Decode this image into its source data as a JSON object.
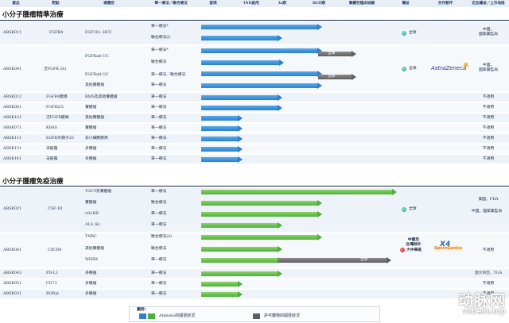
{
  "header": {
    "columns": [
      "產品",
      "靶點",
      "適應症",
      "單一療法／聯合療法",
      "發現",
      "IND啟用",
      "Ia期",
      "Ib/II期",
      "關鍵性臨床試驗",
      "權益",
      "合作夥伴",
      "定品權益／上市地區"
    ]
  },
  "sections": {
    "precision": "小分子腫瘤精準治療",
    "immuno": "小分子腫瘤免疫治療"
  },
  "precision_rows": [
    {
      "product": "ABSK011",
      "target": "FGFR4",
      "indications": [
        "FGF19+ HCC",
        ""
      ],
      "therapies": [
        "單一療法*",
        "聯合療法(i)"
      ],
      "rights": "全球",
      "region": "中國，\n國家藥監局"
    },
    {
      "product": "ABSK091",
      "target": "泛FGFR (iv)",
      "indications": [
        "FGFRalt UC",
        "",
        "FGFRalt GC",
        "其他實體瘤"
      ],
      "therapies": [
        "單一療法*",
        "聯合療法",
        "單一療法／聯合療法",
        "單一療法"
      ],
      "bar_labels": [
        "全球",
        "全球"
      ],
      "rights": "全球",
      "partner": "AstraZeneca",
      "region": "中國，\n國家藥監局"
    },
    {
      "product": "ABSK012",
      "target": "FGFR4變異",
      "indication": "RMS及其他實體瘤",
      "therapy": "單一療法",
      "region": "不適用"
    },
    {
      "product": "ABSK061",
      "target": "FGFR2/3",
      "indication": "實體瘤",
      "therapy": "單一療法",
      "region": "不適用"
    },
    {
      "product": "ABSK121",
      "target": "泛FGFR變異",
      "indication": "其他實體瘤",
      "therapy": "單一療法",
      "region": "不適用"
    },
    {
      "product": "ABSK071",
      "target": "KRAS",
      "indication": "實體瘤",
      "therapy": "單一療法",
      "region": "不適用"
    },
    {
      "product": "ABSK111",
      "target": "EGFR外顯子20",
      "indication": "非小細胞肺癌",
      "therapy": "單一療法",
      "region": "不適用"
    },
    {
      "product": "ABSK131",
      "target": "未披露",
      "indication": "多種瘤",
      "therapy": "單一療法",
      "region": "不適用"
    },
    {
      "product": "ABSK141",
      "target": "未披露",
      "indication": "多種瘤",
      "therapy": "單一療法",
      "region": "不適用"
    }
  ],
  "immuno_rows": [
    {
      "product": "ABSK021",
      "target": "CSF-1R",
      "indications": [
        "TGCT及實體瘤",
        "實體瘤",
        "cGvHD",
        "ALS (ii)"
      ],
      "therapies": [
        "單一療法",
        "聯合療法",
        "單一療法",
        "單一療法"
      ],
      "rights": "全球",
      "region": [
        "美國，FDA",
        "中國，國家藥監局"
      ]
    },
    {
      "product": "ABSK081",
      "target": "CXCR4",
      "indications": [
        "TNBC",
        "其他實體瘤",
        "WHIM"
      ],
      "therapies": [
        "聯合療法(ii)",
        "聯合療法",
        "單一療法"
      ],
      "bar_labels": [
        "全球"
      ],
      "rights_top": "中國及\n台灣除外",
      "rights": "大中華區",
      "partners": [
        "SperoGenics",
        "X4"
      ],
      "region": "不適用"
    },
    {
      "product": "ABSK043",
      "target": "PD-L1",
      "indication": "多種瘤",
      "therapy": "單一療法",
      "region": "澳大利亞，TGA"
    },
    {
      "product": "ABSK051",
      "target": "CD73",
      "indication": "多種瘤",
      "therapy": "單一療法",
      "region": "不適用"
    },
    {
      "product": "ABSK031",
      "target": "RORγt",
      "indication": "多種瘤",
      "therapy": "單一療法",
      "region": "不適用"
    }
  ],
  "legend": {
    "title": "圖例：",
    "abbisko": "Abbisko的開發狀況",
    "licensed": "許可藥物的開發狀況"
  },
  "colors": {
    "blue": "#2d7fcf",
    "green": "#4fae3b",
    "grey": "#5e5e5e",
    "header_bg": "#e7eef6"
  },
  "watermark": {
    "text": "动脉网",
    "site": "vcbeat.top"
  }
}
